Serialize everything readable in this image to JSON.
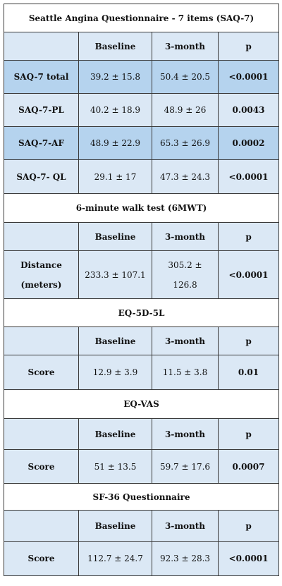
{
  "headers": {
    "baseline": "Baseline",
    "month3": "3-month",
    "p": "p"
  },
  "saq7": {
    "title": "Seattle Angina Questionnaire - 7 items (SAQ-7)",
    "rows": [
      {
        "label": "SAQ-7 total",
        "baseline": "39.2 ± 15.8",
        "month3": "50.4 ± 20.5",
        "p": "<0.0001"
      },
      {
        "label": "SAQ-7-PL",
        "baseline": "40.2 ± 18.9",
        "month3": "48.9 ± 26",
        "p": "0.0043"
      },
      {
        "label": "SAQ-7-AF",
        "baseline": "48.9 ± 22.9",
        "month3": "65.3 ± 26.9",
        "p": "0.0002"
      },
      {
        "label": "SAQ-7- QL",
        "baseline": "29.1 ± 17",
        "month3": "47.3 ± 24.3",
        "p": "<0.0001"
      }
    ]
  },
  "mwt": {
    "title": "6-minute walk test (6MWT)",
    "row": {
      "label": "Distance (meters)",
      "baseline": "233.3 ± 107.1",
      "month3": "305.2 ± 126.8",
      "p": "<0.0001"
    }
  },
  "eq5d": {
    "title": "EQ-5D-5L",
    "row": {
      "label": "Score",
      "baseline": "12.9 ± 3.9",
      "month3": "11.5 ± 3.8",
      "p": "0.01"
    }
  },
  "eqvas": {
    "title": "EQ-VAS",
    "row": {
      "label": "Score",
      "baseline": "51 ± 13.5",
      "month3": "59.7 ± 17.6",
      "p": "0.0007"
    }
  },
  "sf36": {
    "title": "SF-36 Questionnaire",
    "row": {
      "label": "Score",
      "baseline": "112.7 ± 24.7",
      "month3": "92.3 ± 28.3",
      "p": "<0.0001"
    }
  },
  "colors": {
    "header_fill": "#dbe8f5",
    "highlight_fill": "#b5d3ee",
    "border": "#3a3a3a"
  }
}
